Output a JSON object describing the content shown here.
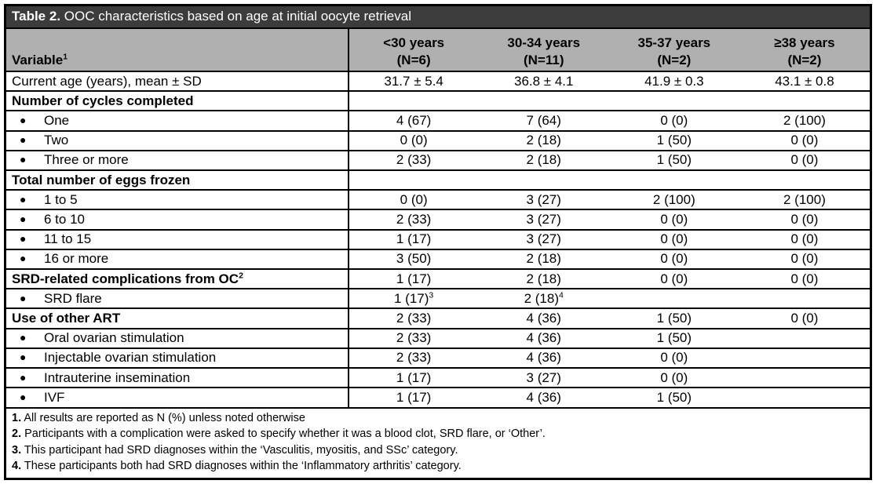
{
  "title": {
    "label": "Table 2.",
    "text": " OOC characteristics based on age at initial oocyte retrieval"
  },
  "header": {
    "variable_label": "Variable^1",
    "columns": [
      {
        "range": "<30 years",
        "n": "(N=6)"
      },
      {
        "range": "30-34 years",
        "n": "(N=11)"
      },
      {
        "range": "35-37 years",
        "n": "(N=2)"
      },
      {
        "range": "≥38 years",
        "n": "(N=2)"
      }
    ]
  },
  "rows": [
    {
      "label": "Current age (years), mean ± SD",
      "style": "plain",
      "values": [
        "31.7 ± 5.4",
        "36.8 ± 4.1",
        "41.9 ± 0.3",
        "43.1 ± 0.8"
      ]
    },
    {
      "label": "Number of cycles completed",
      "style": "section",
      "values": [
        "",
        "",
        "",
        ""
      ]
    },
    {
      "label": "One",
      "style": "bullet",
      "values": [
        "4 (67)",
        "7 (64)",
        "0 (0)",
        "2 (100)"
      ]
    },
    {
      "label": "Two",
      "style": "bullet",
      "values": [
        "0 (0)",
        "2 (18)",
        "1 (50)",
        "0 (0)"
      ]
    },
    {
      "label": "Three or more",
      "style": "bullet",
      "values": [
        "2 (33)",
        "2 (18)",
        "1 (50)",
        "0 (0)"
      ]
    },
    {
      "label": "Total number of eggs frozen",
      "style": "section",
      "values": [
        "",
        "",
        "",
        ""
      ]
    },
    {
      "label": "1 to 5",
      "style": "bullet",
      "values": [
        "0 (0)",
        "3 (27)",
        "2 (100)",
        "2 (100)"
      ]
    },
    {
      "label": "6 to 10",
      "style": "bullet",
      "values": [
        "2 (33)",
        "3 (27)",
        "0 (0)",
        "0 (0)"
      ]
    },
    {
      "label": "11 to 15",
      "style": "bullet",
      "values": [
        "1 (17)",
        "3 (27)",
        "0 (0)",
        "0 (0)"
      ]
    },
    {
      "label": "16 or more",
      "style": "bullet",
      "values": [
        "3 (50)",
        "2 (18)",
        "0 (0)",
        "0 (0)"
      ]
    },
    {
      "label": "SRD-related complications from OC^2",
      "style": "section",
      "values": [
        "1 (17)",
        "2 (18)",
        "0 (0)",
        "0 (0)"
      ]
    },
    {
      "label": "SRD flare",
      "style": "bullet",
      "values": [
        "1 (17)^3",
        "2 (18)^4",
        "",
        ""
      ]
    },
    {
      "label": "Use of other ART",
      "style": "section",
      "values": [
        "2 (33)",
        "4 (36)",
        "1 (50)",
        "0 (0)"
      ]
    },
    {
      "label": "Oral ovarian stimulation",
      "style": "bullet",
      "values": [
        "2 (33)",
        "4 (36)",
        "1 (50)",
        ""
      ]
    },
    {
      "label": "Injectable ovarian stimulation",
      "style": "bullet",
      "values": [
        "2 (33)",
        "4 (36)",
        "0 (0)",
        ""
      ]
    },
    {
      "label": "Intrauterine insemination",
      "style": "bullet",
      "values": [
        "1 (17)",
        "3 (27)",
        "0 (0)",
        ""
      ]
    },
    {
      "label": "IVF",
      "style": "bullet",
      "values": [
        "1 (17)",
        "4 (36)",
        "1 (50)",
        ""
      ]
    }
  ],
  "footnotes": [
    {
      "num": "1.",
      "text": "All results are reported as N (%) unless noted otherwise"
    },
    {
      "num": "2.",
      "text": "Participants with a complication were asked to specify whether it was a blood clot, SRD flare, or ‘Other’."
    },
    {
      "num": "3.",
      "text": "This participant had SRD diagnoses within the ‘Vasculitis, myositis, and SSc’ category."
    },
    {
      "num": "4.",
      "text": "These participants both had SRD diagnoses within the ‘Inflammatory arthritis’ category."
    }
  ],
  "colors": {
    "title_bg": "#3c3c3c",
    "title_fg": "#ffffff",
    "header_bg": "#b0b0b0",
    "border": "#000000"
  },
  "bullet_glyph": "●"
}
